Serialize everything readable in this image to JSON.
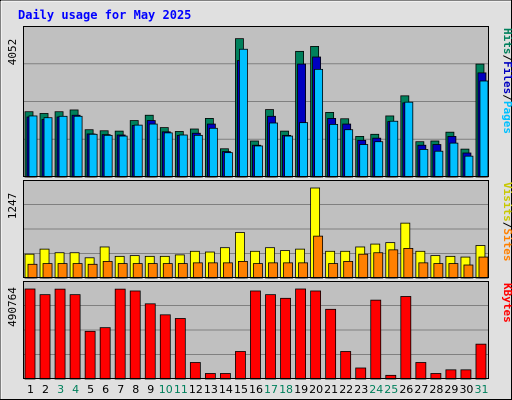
{
  "chart_data": {
    "type": "bar",
    "title": "Daily usage for May 2025",
    "categories": [
      "1",
      "2",
      "3",
      "4",
      "5",
      "6",
      "7",
      "8",
      "9",
      "10",
      "11",
      "12",
      "13",
      "14",
      "15",
      "16",
      "17",
      "18",
      "19",
      "20",
      "21",
      "22",
      "23",
      "24",
      "25",
      "26",
      "27",
      "28",
      "29",
      "30",
      "31"
    ],
    "weekend_days": [
      "3",
      "4",
      "10",
      "11",
      "17",
      "18",
      "24",
      "25",
      "31"
    ],
    "panels": [
      {
        "name": "top",
        "ymax_label": "4052",
        "ylim": [
          0,
          4052
        ],
        "grid": true,
        "series": [
          {
            "name": "Hits",
            "color": "#00805c",
            "values": [
              1850,
              1800,
              1850,
              1900,
              1340,
              1310,
              1300,
              1600,
              1750,
              1400,
              1290,
              1360,
              1660,
              800,
              3920,
              1020,
              1910,
              1300,
              3560,
              3700,
              1830,
              1650,
              1150,
              1210,
              1730,
              2300,
              1000,
              1020,
              1270,
              790,
              3200
            ]
          },
          {
            "name": "Files",
            "color": "#0000c0",
            "values": [
              1700,
              1630,
              1700,
              1750,
              1220,
              1200,
              1190,
              1460,
              1600,
              1280,
              1180,
              1240,
              1500,
              720,
              3300,
              900,
              1720,
              1180,
              3200,
              3400,
              1660,
              1500,
              1040,
              1100,
              1570,
              2100,
              900,
              920,
              1150,
              680,
              2950
            ]
          },
          {
            "name": "Pages",
            "color": "#00c0ff",
            "values": [
              1730,
              1680,
              1720,
              1720,
              1210,
              1180,
              1160,
              1470,
              1500,
              1250,
              1190,
              1180,
              1380,
              690,
              3620,
              880,
              1530,
              1160,
              1540,
              3050,
              1490,
              1340,
              920,
              1000,
              1580,
              2120,
              780,
              730,
              960,
              590,
              2720
            ]
          }
        ]
      },
      {
        "name": "middle",
        "ymax_label": "1247",
        "ylim": [
          0,
          1247
        ],
        "grid": true,
        "series": [
          {
            "name": "Visits",
            "color": "#ffff00",
            "values": [
              330,
              400,
              350,
              350,
              280,
              430,
              300,
              310,
              300,
              300,
              320,
              370,
              360,
              420,
              630,
              370,
              420,
              380,
              400,
              1247,
              370,
              370,
              430,
              470,
              490,
              760,
              370,
              310,
              300,
              290,
              450
            ]
          },
          {
            "name": "Sites",
            "color": "#ff8000",
            "values": [
              190,
              200,
              200,
              200,
              190,
              230,
              200,
              200,
              200,
              200,
              200,
              210,
              210,
              210,
              230,
              200,
              210,
              210,
              210,
              580,
              200,
              230,
              330,
              350,
              390,
              410,
              210,
              200,
              200,
              180,
              290
            ]
          }
        ]
      },
      {
        "name": "bottom",
        "ymax_label": "490764",
        "ylim": [
          0,
          490764
        ],
        "grid": true,
        "series": [
          {
            "name": "KBytes",
            "color": "#ff0000",
            "values": [
              490764,
              460000,
              490000,
              460000,
              260000,
              280000,
              490000,
              480000,
              410000,
              350000,
              330000,
              90000,
              30000,
              30000,
              150000,
              480000,
              460000,
              440000,
              490764,
              480000,
              380000,
              150000,
              60000,
              430000,
              20000,
              450000,
              90000,
              30000,
              50000,
              50000,
              190000
            ]
          }
        ]
      }
    ],
    "right_labels": {
      "top": [
        {
          "text": "Hits",
          "color": "#00805c"
        },
        {
          "text": "/",
          "color": "#000000"
        },
        {
          "text": "Files",
          "color": "#0000c0"
        },
        {
          "text": "/",
          "color": "#000000"
        },
        {
          "text": "Pages",
          "color": "#00c0ff"
        }
      ],
      "middle": [
        {
          "text": "Visits",
          "color": "#c8c800"
        },
        {
          "text": "/",
          "color": "#000000"
        },
        {
          "text": "Sites",
          "color": "#ff8000"
        }
      ],
      "bottom": [
        {
          "text": "KBytes",
          "color": "#ff0000"
        }
      ]
    },
    "colors": {
      "title": "#0000ff",
      "plot_bg": "#c0c0c0",
      "frame_bg": "#e0e0e0",
      "grid": "#808080",
      "weekday_label": "#000000",
      "weekend_label": "#00805c"
    }
  }
}
